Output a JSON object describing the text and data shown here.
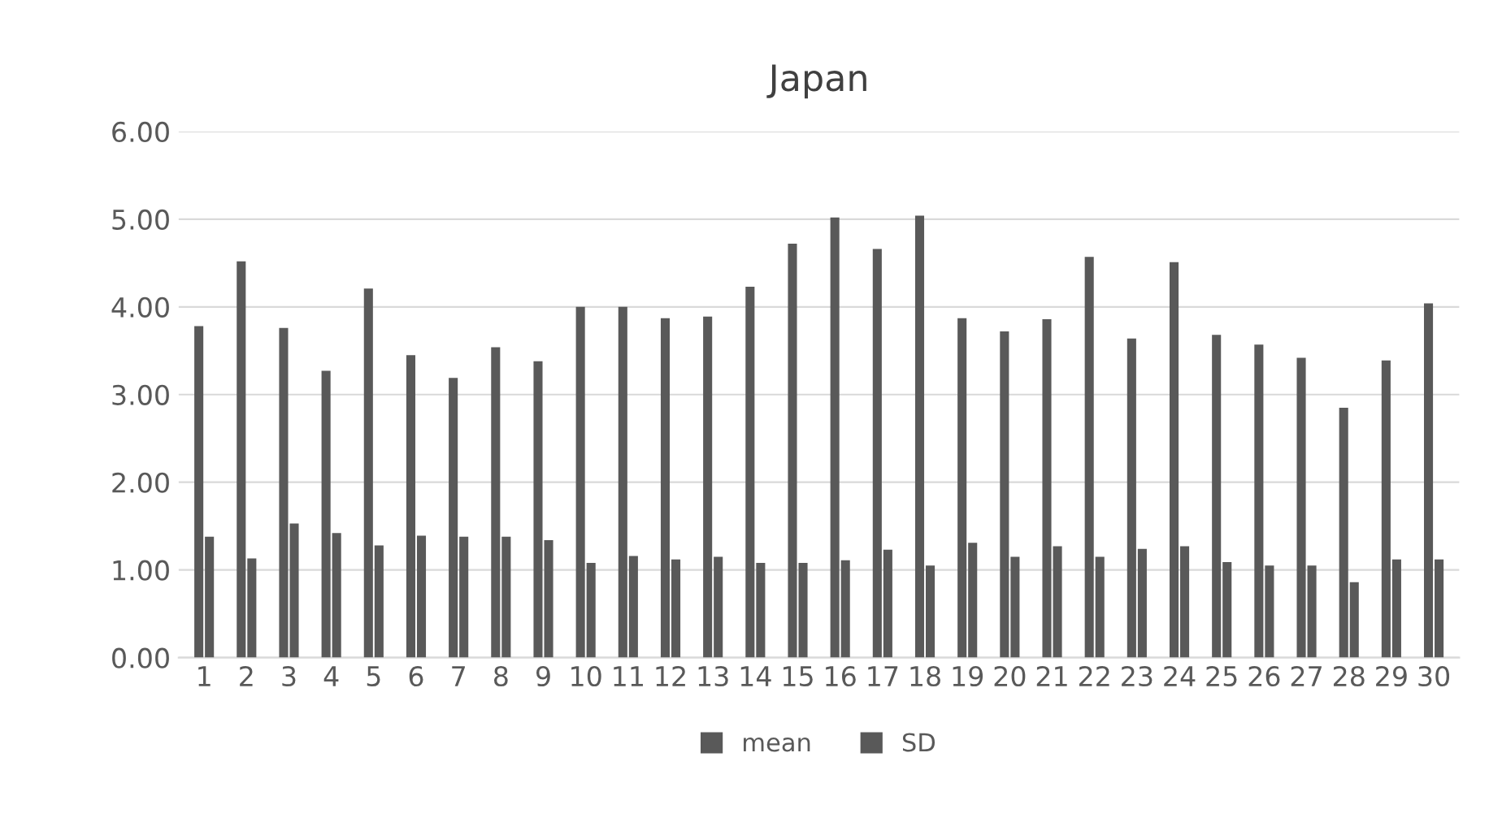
{
  "chart_data": {
    "type": "bar",
    "title": "Japan",
    "categories": [
      "1",
      "2",
      "3",
      "4",
      "5",
      "6",
      "7",
      "8",
      "9",
      "10",
      "11",
      "12",
      "13",
      "14",
      "15",
      "16",
      "17",
      "18",
      "19",
      "20",
      "21",
      "22",
      "23",
      "24",
      "25",
      "26",
      "27",
      "28",
      "29",
      "30"
    ],
    "series": [
      {
        "name": "mean",
        "color": "#595959",
        "values": [
          3.78,
          4.52,
          3.76,
          3.27,
          4.21,
          3.45,
          3.19,
          3.54,
          3.38,
          4.0,
          4.0,
          3.87,
          3.89,
          4.23,
          4.72,
          5.02,
          4.66,
          5.04,
          3.87,
          3.72,
          3.86,
          4.57,
          3.64,
          4.51,
          3.68,
          3.57,
          3.42,
          2.85,
          3.39,
          4.04
        ]
      },
      {
        "name": "SD",
        "color": "#595959",
        "values": [
          1.38,
          1.13,
          1.53,
          1.42,
          1.28,
          1.39,
          1.38,
          1.38,
          1.34,
          1.08,
          1.16,
          1.12,
          1.15,
          1.08,
          1.08,
          1.11,
          1.23,
          1.05,
          1.31,
          1.15,
          1.27,
          1.15,
          1.24,
          1.27,
          1.09,
          1.05,
          1.05,
          0.86,
          1.12,
          1.12
        ]
      }
    ],
    "ylim": [
      0,
      6
    ],
    "yticks": [
      {
        "value": 0,
        "label": "0.00"
      },
      {
        "value": 1,
        "label": "1.00"
      },
      {
        "value": 2,
        "label": "2.00"
      },
      {
        "value": 3,
        "label": "3.00"
      },
      {
        "value": 4,
        "label": "4.00"
      },
      {
        "value": 5,
        "label": "5.00"
      },
      {
        "value": 6,
        "label": "6.00"
      }
    ],
    "grid": "y",
    "legend": "bottom"
  }
}
